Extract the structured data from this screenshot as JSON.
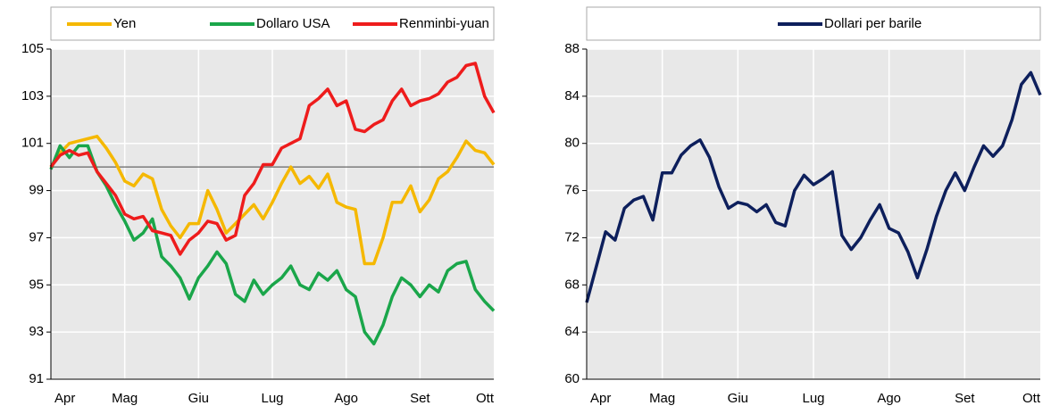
{
  "chart_data": [
    {
      "type": "line",
      "categories": [
        "Apr",
        null,
        null,
        null,
        null,
        null,
        null,
        null,
        "Mag",
        null,
        null,
        null,
        null,
        null,
        null,
        null,
        "Giu",
        null,
        null,
        null,
        null,
        null,
        null,
        null,
        "Lug",
        null,
        null,
        null,
        null,
        null,
        null,
        null,
        "Ago",
        null,
        null,
        null,
        null,
        null,
        null,
        null,
        "Set",
        null,
        null,
        null,
        null,
        null,
        null,
        null,
        "Ott"
      ],
      "series": [
        {
          "name": "Yen",
          "color": "#f5b800",
          "values": [
            100.0,
            100.6,
            101.0,
            101.1,
            101.2,
            101.3,
            100.8,
            100.2,
            99.4,
            99.2,
            99.7,
            99.5,
            98.2,
            97.5,
            97.0,
            97.6,
            97.6,
            99.0,
            98.2,
            97.2,
            97.6,
            98.0,
            98.4,
            97.8,
            98.5,
            99.3,
            100.0,
            99.3,
            99.6,
            99.1,
            99.7,
            98.5,
            98.3,
            98.2,
            95.9,
            95.9,
            97.0,
            98.5,
            98.5,
            99.2,
            98.1,
            98.6,
            99.5,
            99.8,
            100.4,
            101.1,
            100.7,
            100.6,
            100.1
          ]
        },
        {
          "name": "Dollaro USA",
          "color": "#1aa64a",
          "values": [
            99.9,
            100.9,
            100.4,
            100.9,
            100.9,
            99.8,
            99.2,
            98.4,
            97.7,
            96.9,
            97.2,
            97.8,
            96.2,
            95.8,
            95.3,
            94.4,
            95.3,
            95.8,
            96.4,
            95.9,
            94.6,
            94.3,
            95.2,
            94.6,
            95.0,
            95.3,
            95.8,
            95.0,
            94.8,
            95.5,
            95.2,
            95.6,
            94.8,
            94.5,
            93.0,
            92.5,
            93.3,
            94.5,
            95.3,
            95.0,
            94.5,
            95.0,
            94.7,
            95.6,
            95.9,
            96.0,
            94.8,
            94.3,
            93.9
          ]
        },
        {
          "name": "Renminbi-yuan",
          "color": "#ee1c1c",
          "values": [
            100.0,
            100.5,
            100.7,
            100.5,
            100.6,
            99.8,
            99.3,
            98.8,
            98.0,
            97.8,
            97.9,
            97.3,
            97.2,
            97.1,
            96.3,
            96.9,
            97.2,
            97.7,
            97.6,
            96.9,
            97.1,
            98.8,
            99.3,
            100.1,
            100.1,
            100.8,
            101.0,
            101.2,
            102.6,
            102.9,
            103.3,
            102.6,
            102.8,
            101.6,
            101.5,
            101.8,
            102.0,
            102.8,
            103.3,
            102.6,
            102.8,
            102.9,
            103.1,
            103.6,
            103.8,
            104.3,
            104.4,
            103.0,
            102.3
          ]
        }
      ],
      "ylim": [
        91,
        105
      ],
      "yticks": [
        91,
        93,
        95,
        97,
        99,
        101,
        103,
        105
      ],
      "reference_line": 100,
      "grid": true,
      "legend": "top"
    },
    {
      "type": "line",
      "categories": [
        "Apr",
        null,
        null,
        null,
        null,
        null,
        null,
        null,
        "Mag",
        null,
        null,
        null,
        null,
        null,
        null,
        null,
        "Giu",
        null,
        null,
        null,
        null,
        null,
        null,
        null,
        "Lug",
        null,
        null,
        null,
        null,
        null,
        null,
        null,
        "Ago",
        null,
        null,
        null,
        null,
        null,
        null,
        null,
        "Set",
        null,
        null,
        null,
        null,
        null,
        null,
        null,
        "Ott"
      ],
      "series": [
        {
          "name": "Dollari per barile",
          "color": "#0d1f5c",
          "values": [
            66.5,
            69.5,
            72.5,
            71.8,
            74.5,
            75.2,
            75.5,
            73.5,
            77.5,
            77.5,
            79.0,
            79.8,
            80.3,
            78.8,
            76.3,
            74.5,
            75.0,
            74.8,
            74.2,
            74.8,
            73.3,
            73.0,
            76.0,
            77.3,
            76.5,
            77.0,
            77.6,
            72.2,
            71.0,
            72.0,
            73.5,
            74.8,
            72.8,
            72.4,
            70.8,
            68.6,
            71.0,
            73.8,
            76.0,
            77.5,
            76.0,
            78.0,
            79.8,
            78.9,
            79.8,
            82.0,
            85.0,
            86.0,
            84.1
          ]
        }
      ],
      "ylim": [
        60,
        88
      ],
      "yticks": [
        60,
        64,
        68,
        72,
        76,
        80,
        84,
        88
      ],
      "grid": true,
      "legend": "top"
    }
  ]
}
